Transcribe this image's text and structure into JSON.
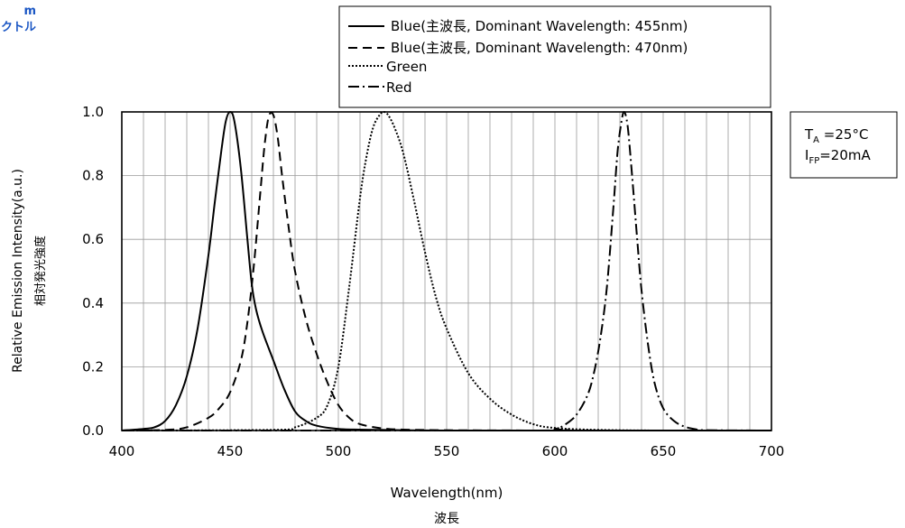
{
  "header": {
    "line1": "m",
    "line2": "クトル"
  },
  "conditions": {
    "ta": "T",
    "ta_sub": "A",
    "ta_rest": " =25°C",
    "ifp": "I",
    "ifp_sub": "FP",
    "ifp_rest": "=20mA"
  },
  "chart_data": {
    "type": "line",
    "title": "",
    "xlabel": "Wavelength(nm)",
    "xlabel_jp": "波長",
    "ylabel": "Relative Emission Intensity(a.u.)",
    "ylabel_jp": "相対発光強度",
    "xlim": [
      400,
      700
    ],
    "ylim": [
      0,
      1.0
    ],
    "xticks": [
      400,
      450,
      500,
      550,
      600,
      650,
      700
    ],
    "yticks": [
      0.0,
      0.2,
      0.4,
      0.6,
      0.8,
      1.0
    ],
    "xtick_labels": [
      "400",
      "450",
      "500",
      "550",
      "600",
      "650",
      "700"
    ],
    "ytick_labels": [
      "0.0",
      "0.2",
      "0.4",
      "0.6",
      "0.8",
      "1.0"
    ],
    "grid": true,
    "legend_position": "top",
    "series": [
      {
        "name": "Blue(主波長, Dominant Wavelength: 455nm)",
        "style": "solid",
        "x": [
          400,
          410,
          415,
          420,
          425,
          430,
          435,
          440,
          443,
          446,
          448,
          450,
          452,
          455,
          458,
          460,
          462,
          465,
          470,
          475,
          480,
          485,
          490,
          500,
          510,
          520,
          530,
          550,
          600,
          650,
          700
        ],
        "y": [
          0,
          0.005,
          0.01,
          0.03,
          0.08,
          0.17,
          0.32,
          0.55,
          0.72,
          0.88,
          0.97,
          1.0,
          0.97,
          0.82,
          0.6,
          0.46,
          0.38,
          0.31,
          0.22,
          0.13,
          0.06,
          0.03,
          0.015,
          0.005,
          0.003,
          0.002,
          0.001,
          0,
          0,
          0,
          0
        ]
      },
      {
        "name": "Blue(主波長, Dominant Wavelength: 470nm)",
        "style": "dash",
        "x": [
          400,
          420,
          430,
          440,
          445,
          450,
          455,
          458,
          461,
          464,
          466,
          468,
          470,
          472,
          474,
          477,
          480,
          485,
          490,
          495,
          500,
          505,
          510,
          520,
          530,
          550,
          600,
          650,
          700
        ],
        "y": [
          0,
          0.002,
          0.01,
          0.04,
          0.07,
          0.12,
          0.22,
          0.34,
          0.52,
          0.75,
          0.9,
          0.99,
          0.99,
          0.92,
          0.8,
          0.64,
          0.5,
          0.35,
          0.24,
          0.15,
          0.08,
          0.04,
          0.02,
          0.007,
          0.003,
          0.001,
          0,
          0,
          0
        ]
      },
      {
        "name": "Green",
        "style": "dot",
        "x": [
          400,
          470,
          480,
          490,
          495,
          500,
          505,
          510,
          513,
          516,
          519,
          521,
          523,
          526,
          530,
          535,
          540,
          545,
          550,
          560,
          570,
          580,
          590,
          600,
          620,
          650,
          700
        ],
        "y": [
          0,
          0.002,
          0.01,
          0.04,
          0.08,
          0.2,
          0.45,
          0.73,
          0.86,
          0.95,
          0.99,
          1.0,
          0.99,
          0.95,
          0.87,
          0.72,
          0.56,
          0.42,
          0.32,
          0.18,
          0.1,
          0.05,
          0.02,
          0.008,
          0.002,
          0,
          0
        ]
      },
      {
        "name": "Red",
        "style": "dashdot",
        "x": [
          400,
          590,
          600,
          605,
          610,
          615,
          618,
          621,
          624,
          627,
          629,
          631,
          632,
          633,
          634,
          636,
          638,
          640,
          643,
          646,
          650,
          655,
          660,
          665,
          670,
          700
        ],
        "y": [
          0,
          0,
          0.005,
          0.02,
          0.05,
          0.11,
          0.18,
          0.29,
          0.45,
          0.7,
          0.88,
          0.98,
          1.0,
          0.98,
          0.93,
          0.77,
          0.6,
          0.44,
          0.27,
          0.15,
          0.07,
          0.03,
          0.012,
          0.004,
          0.001,
          0
        ]
      }
    ]
  }
}
